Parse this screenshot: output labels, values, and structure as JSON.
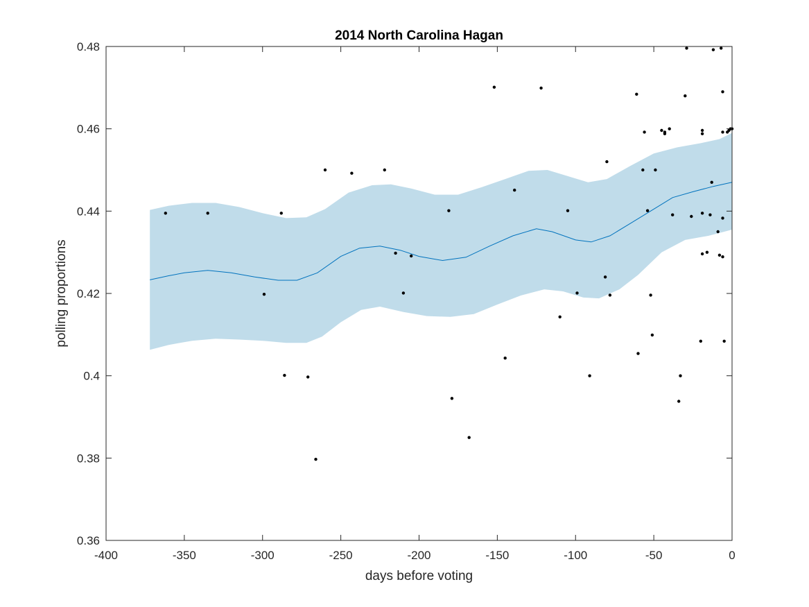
{
  "chart_data": {
    "type": "scatter",
    "title": "2014 North Carolina Hagan",
    "xlabel": "days before voting",
    "ylabel": "polling proportions",
    "xlim": [
      -400,
      0
    ],
    "ylim": [
      0.36,
      0.48
    ],
    "x_ticks": [
      -400,
      -350,
      -300,
      -250,
      -200,
      -150,
      -100,
      -50,
      0
    ],
    "x_tick_labels": [
      "-400",
      "-350",
      "-300",
      "-250",
      "-200",
      "-150",
      "-100",
      "-50",
      "0"
    ],
    "y_ticks": [
      0.36,
      0.38,
      0.4,
      0.42,
      0.44,
      0.46,
      0.48
    ],
    "y_tick_labels": [
      "0.36",
      "0.38",
      "0.4",
      "0.42",
      "0.44",
      "0.46",
      "0.48"
    ],
    "grid": false,
    "colors": {
      "band": "#c0dcea",
      "trend": "#0072bd",
      "points": "#000000",
      "axes": "#262626"
    },
    "series": [
      {
        "name": "polls",
        "kind": "scatter",
        "points": [
          [
            -362,
            0.4395
          ],
          [
            -335,
            0.4395
          ],
          [
            -299,
            0.4198
          ],
          [
            -288,
            0.4395
          ],
          [
            -286,
            0.4001
          ],
          [
            -271,
            0.3997
          ],
          [
            -266,
            0.3797
          ],
          [
            -260,
            0.45
          ],
          [
            -243,
            0.4492
          ],
          [
            -222,
            0.45
          ],
          [
            -215,
            0.4298
          ],
          [
            -210,
            0.4201
          ],
          [
            -205,
            0.4291
          ],
          [
            -181,
            0.4401
          ],
          [
            -179,
            0.3945
          ],
          [
            -168,
            0.385
          ],
          [
            -152,
            0.4701
          ],
          [
            -145,
            0.4043
          ],
          [
            -139,
            0.4451
          ],
          [
            -122,
            0.4699
          ],
          [
            -110,
            0.4143
          ],
          [
            -105,
            0.4401
          ],
          [
            -99,
            0.4201
          ],
          [
            -91,
            0.4
          ],
          [
            -81,
            0.424
          ],
          [
            -80,
            0.452
          ],
          [
            -78,
            0.4196
          ],
          [
            -61,
            0.4684
          ],
          [
            -60,
            0.4054
          ],
          [
            -57,
            0.45
          ],
          [
            -56,
            0.4592
          ],
          [
            -54,
            0.4401
          ],
          [
            -52,
            0.4196
          ],
          [
            -51,
            0.4099
          ],
          [
            -49,
            0.45
          ],
          [
            -45,
            0.4596
          ],
          [
            -43,
            0.4592
          ],
          [
            -43,
            0.4588
          ],
          [
            -40,
            0.46
          ],
          [
            -38,
            0.4391
          ],
          [
            -34,
            0.3938
          ],
          [
            -33,
            0.4
          ],
          [
            -30,
            0.468
          ],
          [
            -29,
            0.4796
          ],
          [
            -26,
            0.4387
          ],
          [
            -20,
            0.4084
          ],
          [
            -19,
            0.4395
          ],
          [
            -19,
            0.4296
          ],
          [
            -19,
            0.4596
          ],
          [
            -19,
            0.4588
          ],
          [
            -16,
            0.43
          ],
          [
            -14,
            0.4391
          ],
          [
            -13,
            0.447
          ],
          [
            -12,
            0.4792
          ],
          [
            -9,
            0.435
          ],
          [
            -8,
            0.4293
          ],
          [
            -7,
            0.4796
          ],
          [
            -6,
            0.4383
          ],
          [
            -6,
            0.469
          ],
          [
            -6,
            0.4592
          ],
          [
            -6,
            0.4289
          ],
          [
            -5,
            0.4084
          ],
          [
            -3,
            0.4592
          ],
          [
            -2,
            0.4596
          ],
          [
            -1,
            0.46
          ],
          [
            0,
            0.46
          ]
        ]
      },
      {
        "name": "trend",
        "kind": "line",
        "points": [
          [
            -372,
            0.4233
          ],
          [
            -360,
            0.4243
          ],
          [
            -350,
            0.425
          ],
          [
            -335,
            0.4256
          ],
          [
            -320,
            0.425
          ],
          [
            -305,
            0.424
          ],
          [
            -290,
            0.4232
          ],
          [
            -278,
            0.4232
          ],
          [
            -265,
            0.425
          ],
          [
            -250,
            0.429
          ],
          [
            -238,
            0.431
          ],
          [
            -225,
            0.4315
          ],
          [
            -212,
            0.4305
          ],
          [
            -200,
            0.429
          ],
          [
            -185,
            0.428
          ],
          [
            -170,
            0.4288
          ],
          [
            -155,
            0.4315
          ],
          [
            -140,
            0.434
          ],
          [
            -125,
            0.4357
          ],
          [
            -115,
            0.435
          ],
          [
            -100,
            0.433
          ],
          [
            -90,
            0.4325
          ],
          [
            -78,
            0.434
          ],
          [
            -65,
            0.437
          ],
          [
            -50,
            0.4405
          ],
          [
            -38,
            0.4433
          ],
          [
            -25,
            0.4447
          ],
          [
            -12,
            0.446
          ],
          [
            0,
            0.447
          ]
        ]
      },
      {
        "name": "confidence band",
        "kind": "area",
        "upper": [
          [
            -372,
            0.4403
          ],
          [
            -360,
            0.4413
          ],
          [
            -345,
            0.442
          ],
          [
            -330,
            0.442
          ],
          [
            -315,
            0.441
          ],
          [
            -300,
            0.4395
          ],
          [
            -285,
            0.4383
          ],
          [
            -272,
            0.4385
          ],
          [
            -260,
            0.4405
          ],
          [
            -245,
            0.4445
          ],
          [
            -230,
            0.4463
          ],
          [
            -218,
            0.4465
          ],
          [
            -205,
            0.4455
          ],
          [
            -190,
            0.444
          ],
          [
            -175,
            0.444
          ],
          [
            -160,
            0.4458
          ],
          [
            -145,
            0.4478
          ],
          [
            -130,
            0.4498
          ],
          [
            -118,
            0.45
          ],
          [
            -105,
            0.4485
          ],
          [
            -92,
            0.447
          ],
          [
            -80,
            0.4478
          ],
          [
            -65,
            0.451
          ],
          [
            -50,
            0.454
          ],
          [
            -35,
            0.4555
          ],
          [
            -20,
            0.4565
          ],
          [
            -8,
            0.4575
          ],
          [
            0,
            0.459
          ]
        ],
        "lower": [
          [
            -372,
            0.4063
          ],
          [
            -360,
            0.4075
          ],
          [
            -345,
            0.4085
          ],
          [
            -330,
            0.409
          ],
          [
            -315,
            0.4088
          ],
          [
            -300,
            0.4085
          ],
          [
            -285,
            0.408
          ],
          [
            -272,
            0.408
          ],
          [
            -262,
            0.4095
          ],
          [
            -250,
            0.413
          ],
          [
            -237,
            0.416
          ],
          [
            -225,
            0.4168
          ],
          [
            -210,
            0.4155
          ],
          [
            -195,
            0.4145
          ],
          [
            -180,
            0.4143
          ],
          [
            -165,
            0.415
          ],
          [
            -150,
            0.4173
          ],
          [
            -135,
            0.4195
          ],
          [
            -120,
            0.421
          ],
          [
            -108,
            0.4205
          ],
          [
            -95,
            0.419
          ],
          [
            -85,
            0.4188
          ],
          [
            -72,
            0.421
          ],
          [
            -60,
            0.4245
          ],
          [
            -45,
            0.43
          ],
          [
            -30,
            0.433
          ],
          [
            -15,
            0.434
          ],
          [
            -5,
            0.435
          ],
          [
            0,
            0.4355
          ]
        ]
      }
    ]
  }
}
